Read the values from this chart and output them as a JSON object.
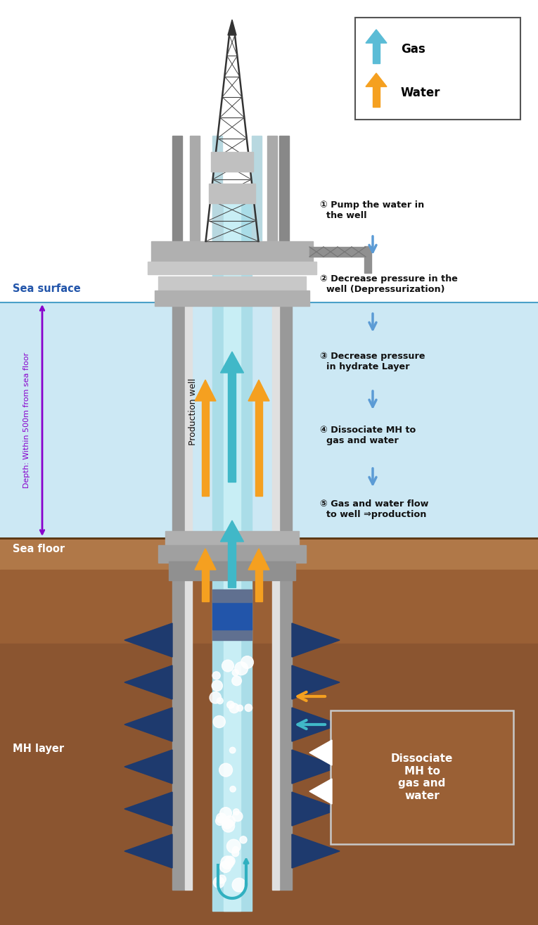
{
  "bg_white": "#ffffff",
  "sea_color": "#cce8f4",
  "seafloor_top_color": "#a07050",
  "mh_layer_color": "#8b5e3c",
  "spike_color": "#1e3a6e",
  "gas_arrow_color": "#40b8c8",
  "water_arrow_color": "#f5a020",
  "step_arrow_color": "#5b9bd5",
  "labels": {
    "sea_surface": "Sea surface",
    "sea_floor": "Sea floor",
    "mh_layer": "MH layer",
    "depth": "Depth: Within 500m from sea floor",
    "production_well": "Production well",
    "dissociate_box": "Dissociate\nMH to\ngas and\nwater"
  },
  "steps": [
    "① Pump the water in\n  the well",
    "② Decrease pressure in the\n  well (Depressurization)",
    "③ Decrease pressure\n  in hydrate Layer",
    "④ Dissociate MH to\n  gas and water",
    "⑤ Gas and water flow\n  to well ⇒production"
  ]
}
